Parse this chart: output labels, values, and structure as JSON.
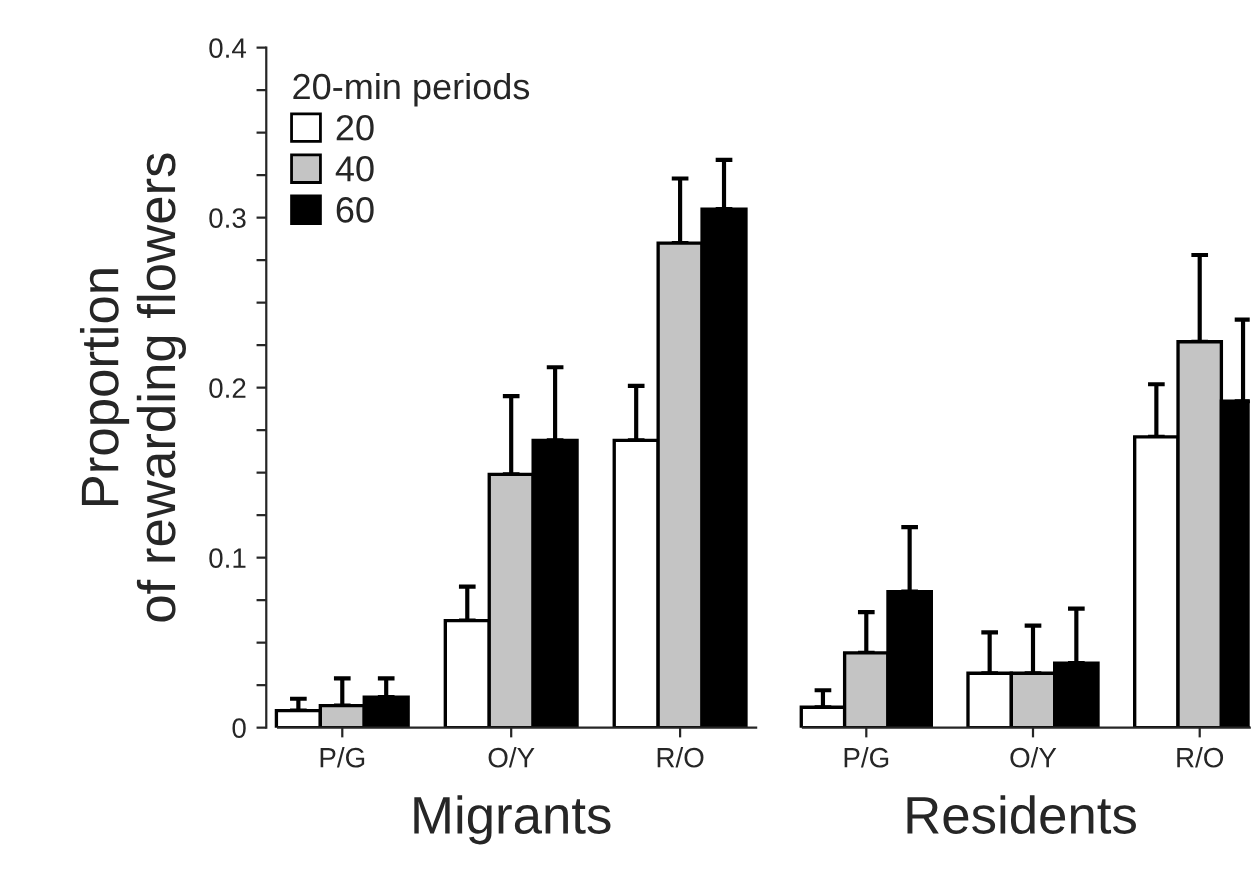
{
  "chart_data": [
    {
      "type": "bar",
      "xlabel": "Migrants",
      "ylabel": "Proportion\nof rewarding flowers",
      "legend_title": "20-min periods",
      "legend": "top left",
      "categories": [
        "P/G",
        "O/Y",
        "R/O"
      ],
      "ylim": [
        0,
        0.4
      ],
      "yticks": [
        0,
        {
          "value": 0.025,
          "label": null
        },
        {
          "value": 0.05,
          "label": null
        },
        {
          "value": 0.075,
          "label": null
        },
        0.1,
        {
          "value": 0.125,
          "label": null
        },
        {
          "value": 0.15,
          "label": null
        },
        {
          "value": 0.175,
          "label": null
        },
        0.2,
        {
          "value": 0.225,
          "label": null
        },
        {
          "value": 0.25,
          "label": null
        },
        {
          "value": 0.275,
          "label": null
        },
        0.3,
        {
          "value": 0.325,
          "label": null
        },
        {
          "value": 0.35,
          "label": null
        },
        {
          "value": 0.375,
          "label": null
        },
        0.4
      ],
      "series": [
        {
          "name": "20",
          "color": "#ffffff",
          "values": [
            0.01,
            0.063,
            0.169
          ],
          "errors": [
            [
              0.01,
              0.017
            ],
            [
              0.063,
              0.083
            ],
            [
              0.169,
              0.201
            ]
          ]
        },
        {
          "name": "40",
          "color": "#c4c4c4",
          "values": [
            0.013,
            0.149,
            0.285
          ],
          "errors": [
            [
              0.013,
              0.029
            ],
            [
              0.149,
              0.195
            ],
            [
              0.285,
              0.323
            ]
          ]
        },
        {
          "name": "60",
          "color": "#000000",
          "values": [
            0.018,
            0.169,
            0.305
          ],
          "errors": [
            [
              0.018,
              0.029
            ],
            [
              0.169,
              0.212
            ],
            [
              0.305,
              0.334
            ]
          ]
        }
      ]
    },
    {
      "type": "bar",
      "xlabel": "Residents",
      "tick_labels": "x",
      "categories": [
        "P/G",
        "O/Y",
        "R/O"
      ],
      "ylim": [
        0,
        0.4
      ],
      "series": [
        {
          "color": "#ffffff",
          "values": [
            0.012,
            0.032,
            0.171
          ],
          "errors": [
            [
              0.012,
              0.022
            ],
            [
              0.032,
              0.056
            ],
            [
              0.171,
              0.202
            ]
          ]
        },
        {
          "color": "#c4c4c4",
          "values": [
            0.044,
            0.032,
            0.227
          ],
          "errors": [
            [
              0.044,
              0.068
            ],
            [
              0.032,
              0.06
            ],
            [
              0.227,
              0.278
            ]
          ]
        },
        {
          "color": "#000000",
          "values": [
            0.08,
            0.038,
            0.192
          ],
          "errors": [
            [
              0.08,
              0.118
            ],
            [
              0.038,
              0.07
            ],
            [
              0.192,
              0.24
            ]
          ]
        }
      ]
    }
  ]
}
